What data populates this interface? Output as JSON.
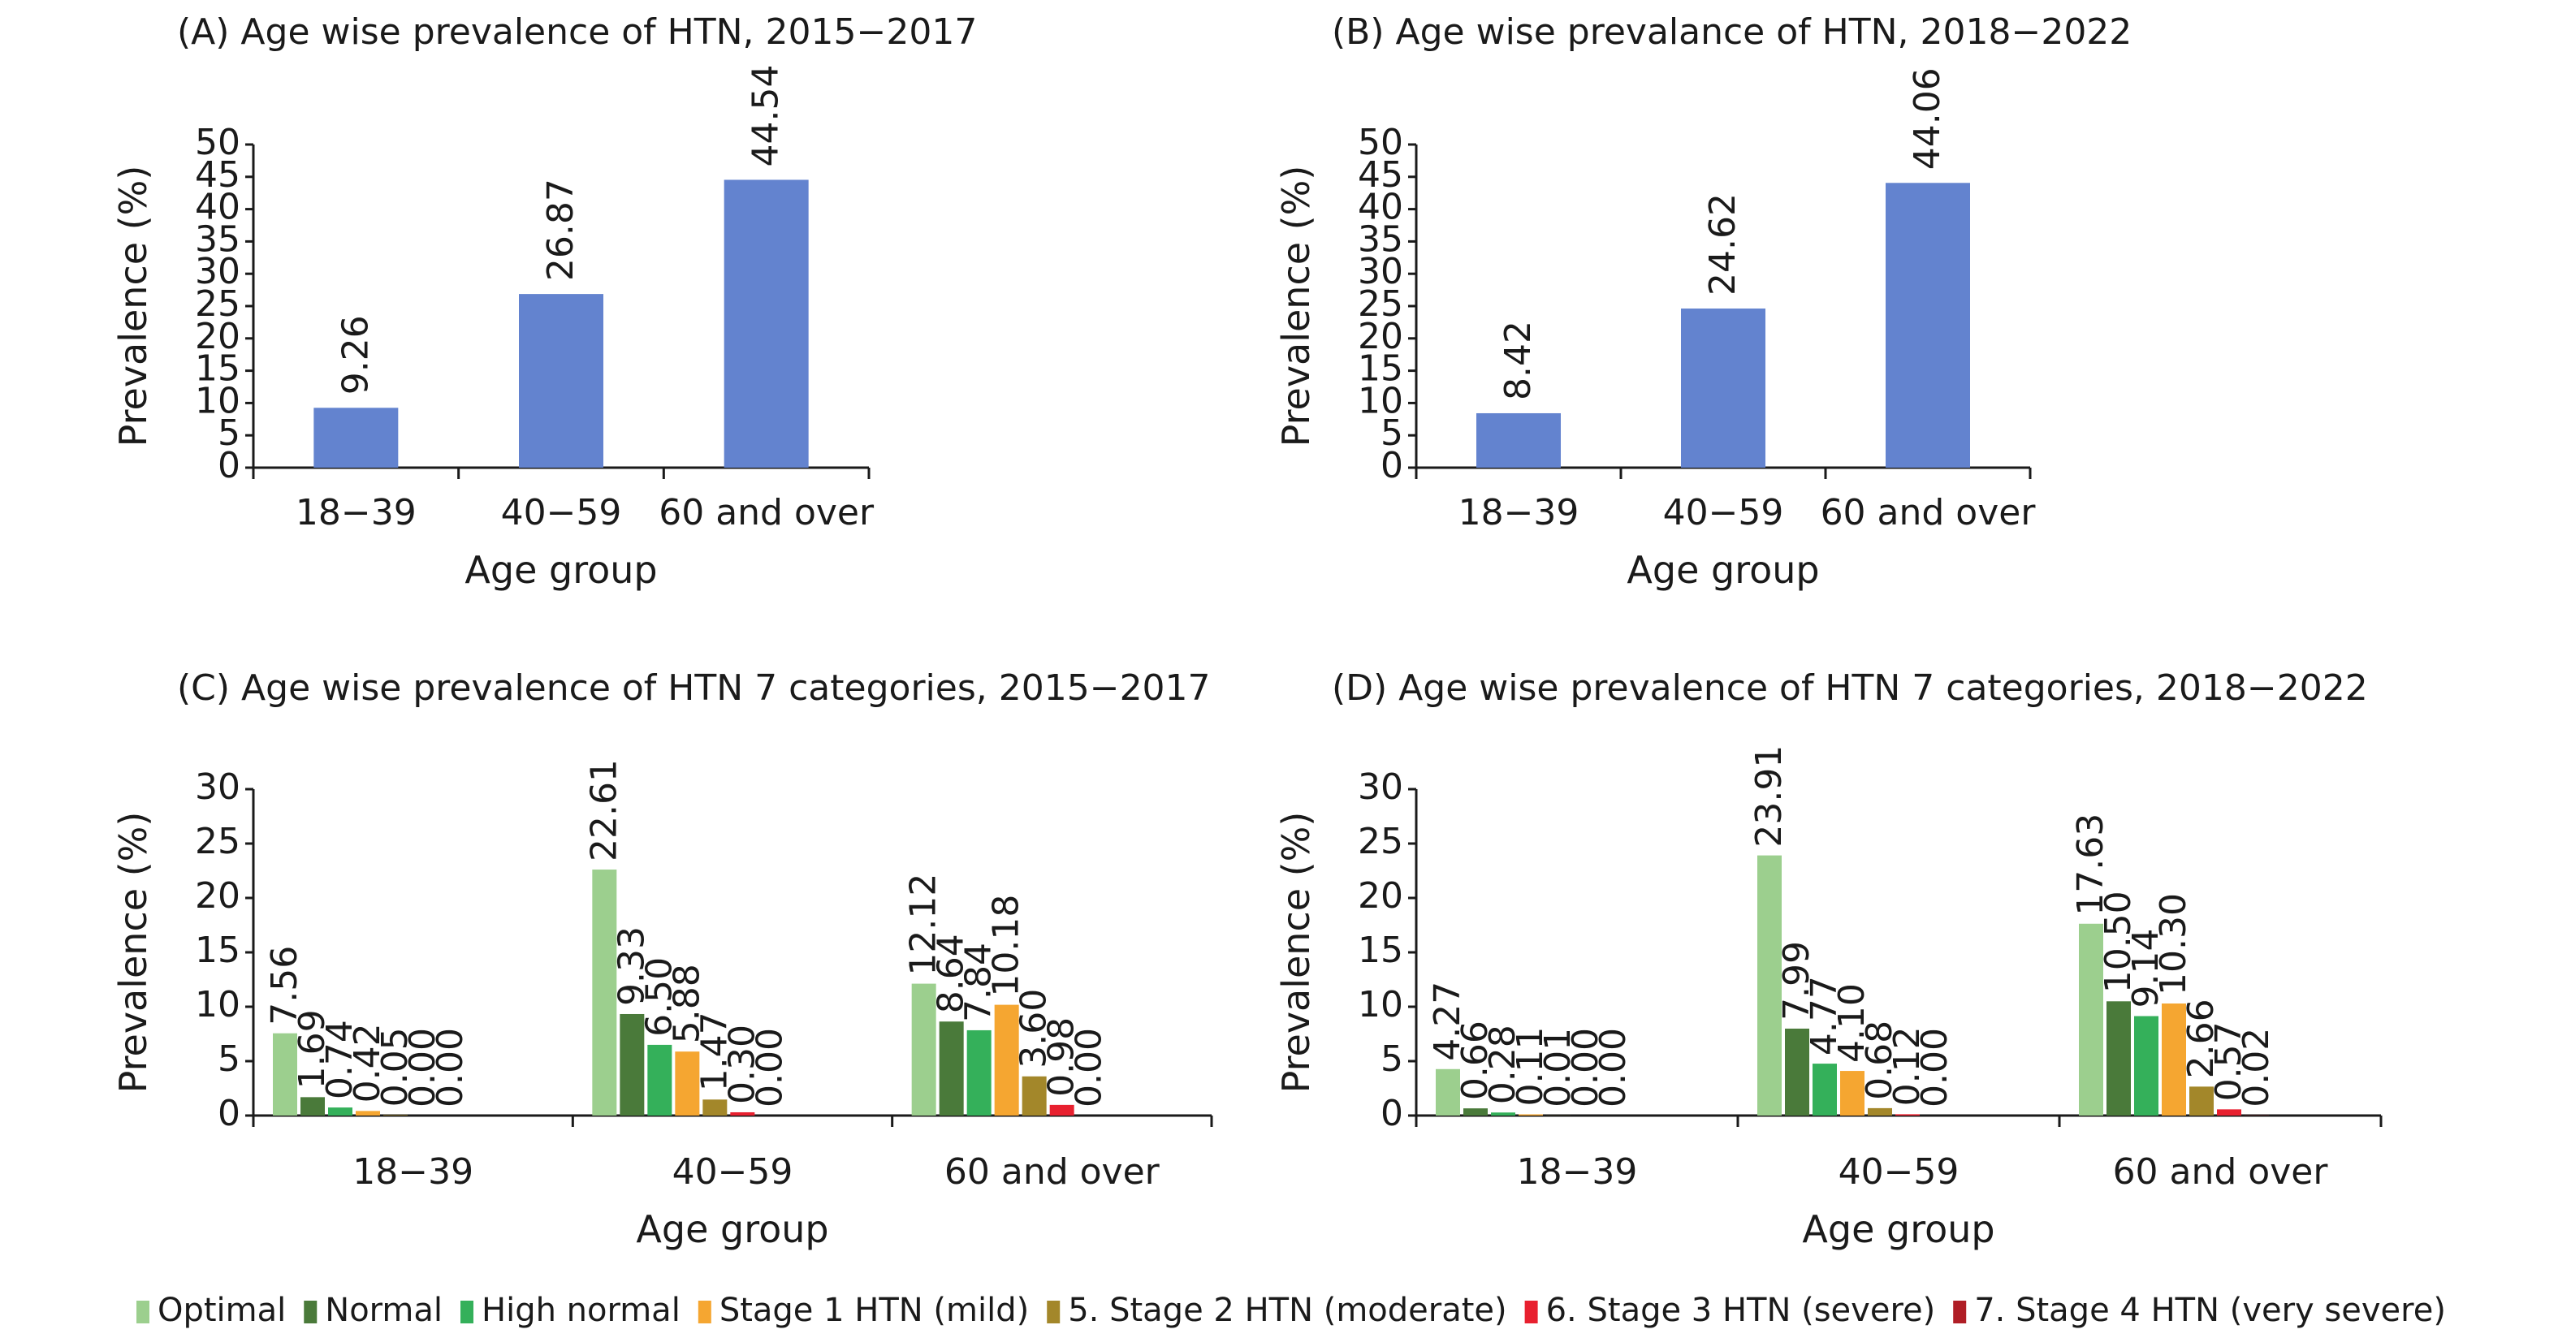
{
  "chart_data": [
    {
      "id": "A",
      "type": "bar",
      "title": "(A) Age wise prevalence of HTN, 2015−2017",
      "xlabel": "Age group",
      "ylabel": "Prevalence (%)",
      "ylim": [
        0,
        50
      ],
      "yticks": [
        0,
        5,
        10,
        15,
        20,
        25,
        30,
        35,
        40,
        45,
        50
      ],
      "categories": [
        "18−39",
        "40−59",
        "60 and over"
      ],
      "values": [
        9.26,
        26.87,
        44.54
      ],
      "value_labels": [
        "9.26",
        "26.87",
        "44.54"
      ],
      "color": "#6383cf"
    },
    {
      "id": "B",
      "type": "bar",
      "title": "(B) Age wise prevalance of HTN, 2018−2022",
      "xlabel": "Age group",
      "ylabel": "Prevalence (%)",
      "ylim": [
        0,
        50
      ],
      "yticks": [
        0,
        5,
        10,
        15,
        20,
        25,
        30,
        35,
        40,
        45,
        50
      ],
      "categories": [
        "18−39",
        "40−59",
        "60 and over"
      ],
      "values": [
        8.42,
        24.62,
        44.06
      ],
      "value_labels": [
        "8.42",
        "24.62",
        "44.06"
      ],
      "color": "#6383cf"
    },
    {
      "id": "C",
      "type": "bar",
      "title": "(C) Age wise prevalence of HTN 7 categories, 2015−2017",
      "xlabel": "Age group",
      "ylabel": "Prevalence (%)",
      "ylim": [
        0,
        30
      ],
      "yticks": [
        0,
        5,
        10,
        15,
        20,
        25,
        30
      ],
      "categories": [
        "18−39",
        "40−59",
        "60 and over"
      ],
      "series": [
        {
          "name": "Optimal",
          "values": [
            7.56,
            22.61,
            12.12
          ],
          "labels": [
            "7.56",
            "22.61",
            "12.12"
          ]
        },
        {
          "name": "Normal",
          "values": [
            1.69,
            9.33,
            8.64
          ],
          "labels": [
            "1.69",
            "9.33",
            "8.64"
          ]
        },
        {
          "name": "High normal",
          "values": [
            0.74,
            6.5,
            7.84
          ],
          "labels": [
            "0.74",
            "6.50",
            "7.84"
          ]
        },
        {
          "name": "Stage 1 HTN (mild)",
          "values": [
            0.42,
            5.88,
            10.18
          ],
          "labels": [
            "0.42",
            "5.88",
            "10.18"
          ]
        },
        {
          "name": "5. Stage 2 HTN (moderate)",
          "values": [
            0.05,
            1.47,
            3.6
          ],
          "labels": [
            "0.05",
            "1.47",
            "3.60"
          ]
        },
        {
          "name": "6. Stage 3 HTN (severe)",
          "values": [
            0.0,
            0.3,
            0.98
          ],
          "labels": [
            "0.00",
            "0.30",
            "0.98"
          ]
        },
        {
          "name": "7. Stage 4 HTN (very severe)",
          "values": [
            0.0,
            0.0,
            0.0
          ],
          "labels": [
            "0.00",
            "0.00",
            "0.00"
          ]
        }
      ]
    },
    {
      "id": "D",
      "type": "bar",
      "title": "(D) Age wise prevalence of HTN 7 categories, 2018−2022",
      "xlabel": "Age group",
      "ylabel": "Prevalence (%)",
      "ylim": [
        0,
        30
      ],
      "yticks": [
        0,
        5,
        10,
        15,
        20,
        25,
        30
      ],
      "categories": [
        "18−39",
        "40−59",
        "60 and over"
      ],
      "series": [
        {
          "name": "Optimal",
          "values": [
            4.27,
            23.91,
            17.63
          ],
          "labels": [
            "4.27",
            "23.91",
            "17.63"
          ]
        },
        {
          "name": "Normal",
          "values": [
            0.66,
            7.99,
            10.5
          ],
          "labels": [
            "0.66",
            "7.99",
            "10.50"
          ]
        },
        {
          "name": "High normal",
          "values": [
            0.28,
            4.77,
            9.14
          ],
          "labels": [
            "0.28",
            "4.77",
            "9.14"
          ]
        },
        {
          "name": "Stage 1 HTN (mild)",
          "values": [
            0.11,
            4.1,
            10.3
          ],
          "labels": [
            "0.11",
            "4.10",
            "10.30"
          ]
        },
        {
          "name": "5. Stage 2 HTN (moderate)",
          "values": [
            0.01,
            0.68,
            2.66
          ],
          "labels": [
            "0.01",
            "0.68",
            "2.66"
          ]
        },
        {
          "name": "6. Stage 3 HTN (severe)",
          "values": [
            0.0,
            0.12,
            0.57
          ],
          "labels": [
            "0.00",
            "0.12",
            "0.57"
          ]
        },
        {
          "name": "7. Stage 4 HTN (very severe)",
          "values": [
            0.0,
            0.0,
            0.02
          ],
          "labels": [
            "0.00",
            "0.00",
            "0.02"
          ]
        }
      ]
    }
  ],
  "legend": {
    "placement": "bottom",
    "items": [
      {
        "label": "Optimal",
        "color": "#9ccf8e"
      },
      {
        "label": "Normal",
        "color": "#4a7a3a"
      },
      {
        "label": "High normal",
        "color": "#34b05a"
      },
      {
        "label": "Stage 1 HTN (mild)",
        "color": "#f5a631"
      },
      {
        "label": "5. Stage 2 HTN (moderate)",
        "color": "#a3872a"
      },
      {
        "label": "6. Stage 3 HTN (severe)",
        "color": "#e8202f"
      },
      {
        "label": "7. Stage 4 HTN (very severe)",
        "color": "#b01e26"
      }
    ]
  }
}
